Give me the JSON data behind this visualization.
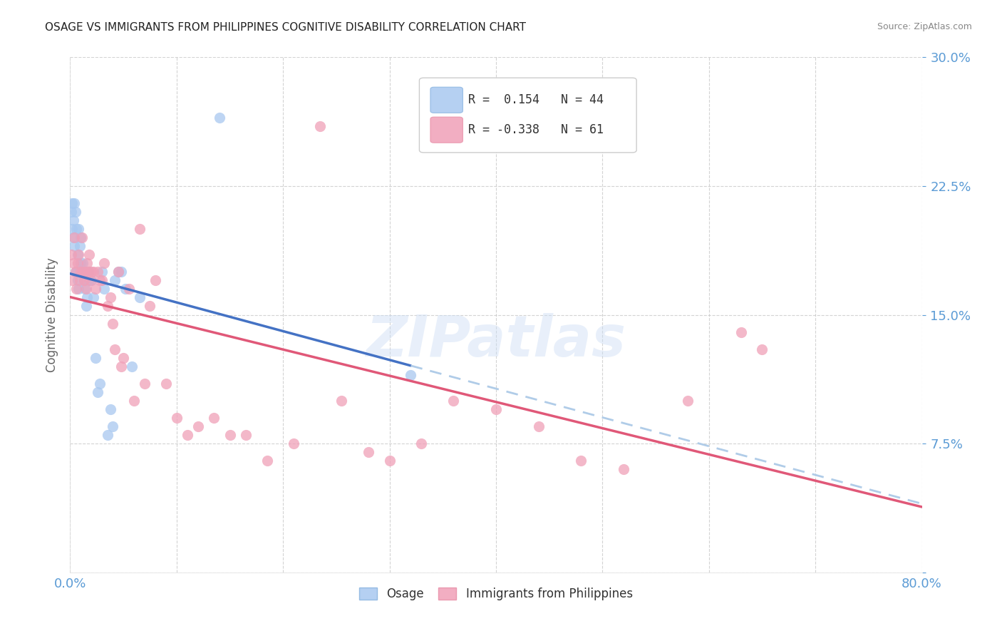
{
  "title": "OSAGE VS IMMIGRANTS FROM PHILIPPINES COGNITIVE DISABILITY CORRELATION CHART",
  "source": "Source: ZipAtlas.com",
  "ylabel": "Cognitive Disability",
  "x_min": 0.0,
  "x_max": 0.8,
  "y_min": 0.0,
  "y_max": 0.3,
  "x_ticks": [
    0.0,
    0.1,
    0.2,
    0.3,
    0.4,
    0.5,
    0.6,
    0.7,
    0.8
  ],
  "y_ticks": [
    0.0,
    0.075,
    0.15,
    0.225,
    0.3
  ],
  "grid_color": "#c8c8c8",
  "background_color": "#ffffff",
  "watermark": "ZIPatlas",
  "legend_R1": "0.154",
  "legend_N1": "44",
  "legend_R2": "-0.338",
  "legend_N2": "61",
  "color_osage": "#a8c8f0",
  "color_philippines": "#f0a0b8",
  "color_osage_line": "#4472c4",
  "color_philippines_line": "#e05878",
  "color_osage_dashed": "#b0cce8",
  "color_tick_labels": "#5b9bd5",
  "osage_x": [
    0.001,
    0.002,
    0.002,
    0.003,
    0.003,
    0.004,
    0.004,
    0.005,
    0.005,
    0.006,
    0.006,
    0.007,
    0.007,
    0.008,
    0.008,
    0.009,
    0.01,
    0.01,
    0.011,
    0.012,
    0.013,
    0.014,
    0.015,
    0.016,
    0.017,
    0.018,
    0.02,
    0.022,
    0.024,
    0.026,
    0.028,
    0.03,
    0.032,
    0.035,
    0.038,
    0.04,
    0.042,
    0.045,
    0.048,
    0.052,
    0.058,
    0.065,
    0.14,
    0.32
  ],
  "osage_y": [
    0.21,
    0.215,
    0.2,
    0.205,
    0.195,
    0.215,
    0.19,
    0.21,
    0.175,
    0.2,
    0.175,
    0.17,
    0.185,
    0.165,
    0.2,
    0.19,
    0.18,
    0.195,
    0.175,
    0.18,
    0.17,
    0.165,
    0.155,
    0.16,
    0.175,
    0.17,
    0.17,
    0.16,
    0.125,
    0.105,
    0.11,
    0.175,
    0.165,
    0.08,
    0.095,
    0.085,
    0.17,
    0.175,
    0.175,
    0.165,
    0.12,
    0.16,
    0.265,
    0.115
  ],
  "philippines_x": [
    0.001,
    0.002,
    0.003,
    0.004,
    0.005,
    0.006,
    0.007,
    0.008,
    0.009,
    0.01,
    0.011,
    0.012,
    0.013,
    0.014,
    0.015,
    0.016,
    0.017,
    0.018,
    0.019,
    0.02,
    0.022,
    0.024,
    0.026,
    0.028,
    0.03,
    0.032,
    0.035,
    0.038,
    0.04,
    0.042,
    0.045,
    0.048,
    0.05,
    0.055,
    0.06,
    0.065,
    0.07,
    0.075,
    0.08,
    0.09,
    0.1,
    0.11,
    0.12,
    0.135,
    0.15,
    0.165,
    0.185,
    0.21,
    0.235,
    0.255,
    0.28,
    0.3,
    0.33,
    0.36,
    0.4,
    0.44,
    0.48,
    0.52,
    0.58,
    0.63,
    0.65
  ],
  "philippines_y": [
    0.185,
    0.17,
    0.18,
    0.195,
    0.175,
    0.165,
    0.18,
    0.185,
    0.17,
    0.175,
    0.195,
    0.175,
    0.17,
    0.175,
    0.165,
    0.18,
    0.175,
    0.185,
    0.17,
    0.175,
    0.175,
    0.165,
    0.175,
    0.17,
    0.17,
    0.18,
    0.155,
    0.16,
    0.145,
    0.13,
    0.175,
    0.12,
    0.125,
    0.165,
    0.1,
    0.2,
    0.11,
    0.155,
    0.17,
    0.11,
    0.09,
    0.08,
    0.085,
    0.09,
    0.08,
    0.08,
    0.065,
    0.075,
    0.26,
    0.1,
    0.07,
    0.065,
    0.075,
    0.1,
    0.095,
    0.085,
    0.065,
    0.06,
    0.1,
    0.14,
    0.13
  ]
}
